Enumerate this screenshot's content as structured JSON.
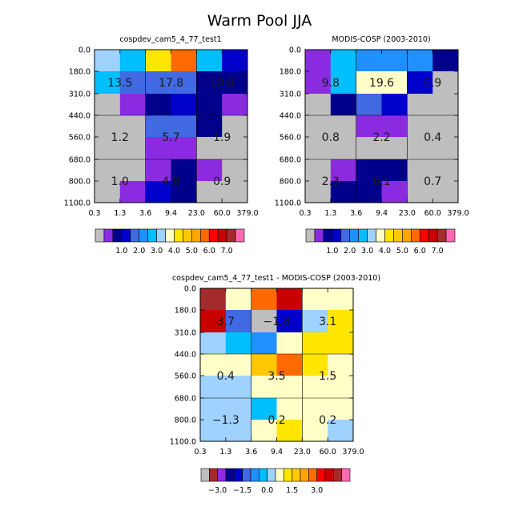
{
  "title": "Warm Pool JJA",
  "palette": {
    "missing": "#BEBEBE",
    "abs_colors": [
      "#8A2BE2",
      "#00008B",
      "#0000CD",
      "#4169E1",
      "#1E90FF",
      "#00BFFF",
      "#A0D2FF",
      "#FFFFC8",
      "#FFE600",
      "#FFC800",
      "#FFA500",
      "#FF6A00",
      "#FF0000",
      "#C80000",
      "#A52A2A",
      "#FF69B4"
    ],
    "abs_bounds": [
      0.5,
      0.7,
      1.0,
      1.5,
      2.0,
      2.5,
      3.0,
      3.5,
      4.0,
      4.5,
      5.0,
      5.5,
      6.0,
      6.5,
      7.0
    ],
    "abs_labels": [
      "1.0",
      "2.0",
      "3.0",
      "4.0",
      "5.0",
      "6.0",
      "7.0"
    ],
    "diff_colors": [
      "#A52A2A",
      "#8A2BE2",
      "#00008B",
      "#0000CD",
      "#4169E1",
      "#1E90FF",
      "#00BFFF",
      "#A0D2FF",
      "#FFFFC8",
      "#FFE600",
      "#FFC800",
      "#FFA500",
      "#FF6A00",
      "#FF0000",
      "#C80000",
      "#A52A2A",
      "#FF69B4"
    ],
    "diff_bounds": [
      -3.5,
      -3.0,
      -2.5,
      -2.0,
      -1.5,
      -1.0,
      -0.5,
      0.0,
      0.5,
      1.0,
      1.5,
      2.0,
      2.5,
      3.0,
      3.5,
      4.0
    ],
    "diff_labels": [
      "−3.0",
      "−1.5",
      "0.0",
      "1.5",
      "3.0"
    ]
  },
  "chart_data": [
    {
      "type": "heatmap",
      "title": "cospdev_cam5_4_77_test1",
      "x_ticks": [
        "0.3",
        "1.3",
        "3.6",
        "9.4",
        "23.0",
        "60.0",
        "379.0"
      ],
      "y_ticks": [
        "0.0",
        "180.0",
        "310.0",
        "440.0",
        "560.0",
        "680.0",
        "800.0",
        "1100.0"
      ],
      "cells": [
        [
          "#A0D2FF",
          "#00BFFF",
          "#FFE600",
          "#FF6A00",
          "#00BFFF",
          "#0000CD"
        ],
        [
          "#00BFFF",
          "#4169E1",
          "#4169E1",
          "#4169E1",
          "#00008B",
          "#00008B"
        ],
        [
          "#BEBEBE",
          "#8A2BE2",
          "#00008B",
          "#0000CD",
          "#00008B",
          "#8A2BE2"
        ],
        [
          "#BEBEBE",
          "#BEBEBE",
          "#4169E1",
          "#4169E1",
          "#00008B",
          "#BEBEBE"
        ],
        [
          "#BEBEBE",
          "#BEBEBE",
          "#8A2BE2",
          "#8A2BE2",
          "#BEBEBE",
          "#BEBEBE"
        ],
        [
          "#BEBEBE",
          "#BEBEBE",
          "#8A2BE2",
          "#00008B",
          "#8A2BE2",
          "#BEBEBE"
        ],
        [
          "#BEBEBE",
          "#8A2BE2",
          "#0000CD",
          "#00008B",
          "#BEBEBE",
          "#BEBEBE"
        ]
      ],
      "block_labels": [
        [
          "13.5",
          "17.8",
          "10.0"
        ],
        [
          "1.2",
          "5.7",
          "1.9"
        ],
        [
          "1.0",
          "4.8",
          "0.9"
        ]
      ]
    },
    {
      "type": "heatmap",
      "title": "MODIS-COSP (2003-2010)",
      "x_ticks": [
        "0.3",
        "1.3",
        "3.6",
        "9.4",
        "23.0",
        "60.0",
        "379.0"
      ],
      "y_ticks": [
        "0.0",
        "180.0",
        "310.0",
        "440.0",
        "560.0",
        "680.0",
        "800.0",
        "1100.0"
      ],
      "cells": [
        [
          "#8A2BE2",
          "#00BFFF",
          "#1E90FF",
          "#1E90FF",
          "#1E90FF",
          "#00008B"
        ],
        [
          "#8A2BE2",
          "#00BFFF",
          "#FFFFC8",
          "#FFFFC8",
          "#0000CD",
          "#BEBEBE"
        ],
        [
          "#BEBEBE",
          "#00008B",
          "#4169E1",
          "#0000CD",
          "#BEBEBE",
          "#BEBEBE"
        ],
        [
          "#BEBEBE",
          "#BEBEBE",
          "#8A2BE2",
          "#8A2BE2",
          "#BEBEBE",
          "#BEBEBE"
        ],
        [
          "#BEBEBE",
          "#BEBEBE",
          "#BEBEBE",
          "#BEBEBE",
          "#BEBEBE",
          "#BEBEBE"
        ],
        [
          "#BEBEBE",
          "#8A2BE2",
          "#00008B",
          "#00008B",
          "#BEBEBE",
          "#BEBEBE"
        ],
        [
          "#BEBEBE",
          "#00008B",
          "#00008B",
          "#8A2BE2",
          "#BEBEBE",
          "#BEBEBE"
        ]
      ],
      "block_labels": [
        [
          "9.8",
          "19.6",
          "6.9"
        ],
        [
          "0.8",
          "2.2",
          "0.4"
        ],
        [
          "2.3",
          "6.1",
          "0.7"
        ]
      ]
    },
    {
      "type": "heatmap",
      "title": "cospdev_cam5_4_77_test1 - MODIS-COSP (2003-2010)",
      "x_ticks": [
        "0.3",
        "1.3",
        "3.6",
        "9.4",
        "23.0",
        "60.0",
        "379.0"
      ],
      "y_ticks": [
        "0.0",
        "180.0",
        "310.0",
        "440.0",
        "560.0",
        "680.0",
        "800.0",
        "1100.0"
      ],
      "cells": [
        [
          "#A52A2A",
          "#FFFFC8",
          "#FF6A00",
          "#C80000",
          "#FFFFC8",
          "#FFFFC8"
        ],
        [
          "#C80000",
          "#4169E1",
          "#BEBEBE",
          "#0000CD",
          "#A0D2FF",
          "#FFE600"
        ],
        [
          "#A0D2FF",
          "#00BFFF",
          "#1E90FF",
          "#FFFFC8",
          "#FFE600",
          "#FFE600"
        ],
        [
          "#FFFFC8",
          "#FFFFC8",
          "#FFC800",
          "#FF6A00",
          "#FFE600",
          "#FFFFC8"
        ],
        [
          "#A0D2FF",
          "#A0D2FF",
          "#FFFFC8",
          "#FFFFC8",
          "#FFFFC8",
          "#FFFFC8"
        ],
        [
          "#A0D2FF",
          "#A0D2FF",
          "#00BFFF",
          "#FFFFC8",
          "#FFFFC8",
          "#FFFFC8"
        ],
        [
          "#A0D2FF",
          "#A0D2FF",
          "#FFFFC8",
          "#FFE600",
          "#FFFFC8",
          "#A0D2FF"
        ]
      ],
      "block_labels": [
        [
          "3.7",
          "−1.8",
          "3.1"
        ],
        [
          "0.4",
          "3.5",
          "1.5"
        ],
        [
          "−1.3",
          "0.2",
          "0.2"
        ]
      ]
    }
  ]
}
